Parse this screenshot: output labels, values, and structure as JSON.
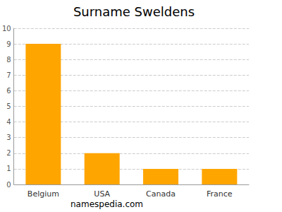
{
  "chart_data": {
    "type": "bar",
    "title": "Surname Sweldens",
    "categories": [
      "Belgium",
      "USA",
      "Canada",
      "France"
    ],
    "values": [
      9,
      2,
      1,
      1
    ],
    "color": "#ffa500",
    "ylim": [
      0,
      10
    ],
    "yticks": [
      0,
      1,
      2,
      3,
      4,
      5,
      6,
      7,
      8,
      9,
      10
    ],
    "grid": true,
    "annotation": "namespedia.com"
  }
}
